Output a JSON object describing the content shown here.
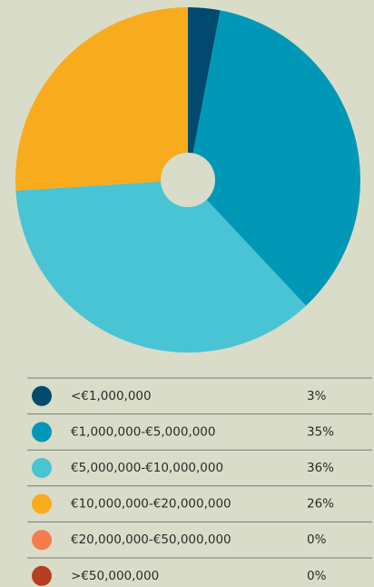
{
  "chart_data": {
    "type": "pie",
    "categories": [
      "<€1,000,000",
      "€1,000,000-€5,000,000",
      "€5,000,000-€10,000,000",
      "€10,000,000-€20,000,000",
      "€20,000,000-€50,000,000",
      ">€50,000,000"
    ],
    "values": [
      3,
      35,
      36,
      26,
      0,
      0
    ],
    "value_labels": [
      "3%",
      "35%",
      "36%",
      "26%",
      "0%",
      "0%"
    ],
    "colors": [
      "#004a70",
      "#0098b6",
      "#48c4d4",
      "#f9ab1e",
      "#f47c4f",
      "#b4401e"
    ],
    "donut": true
  }
}
